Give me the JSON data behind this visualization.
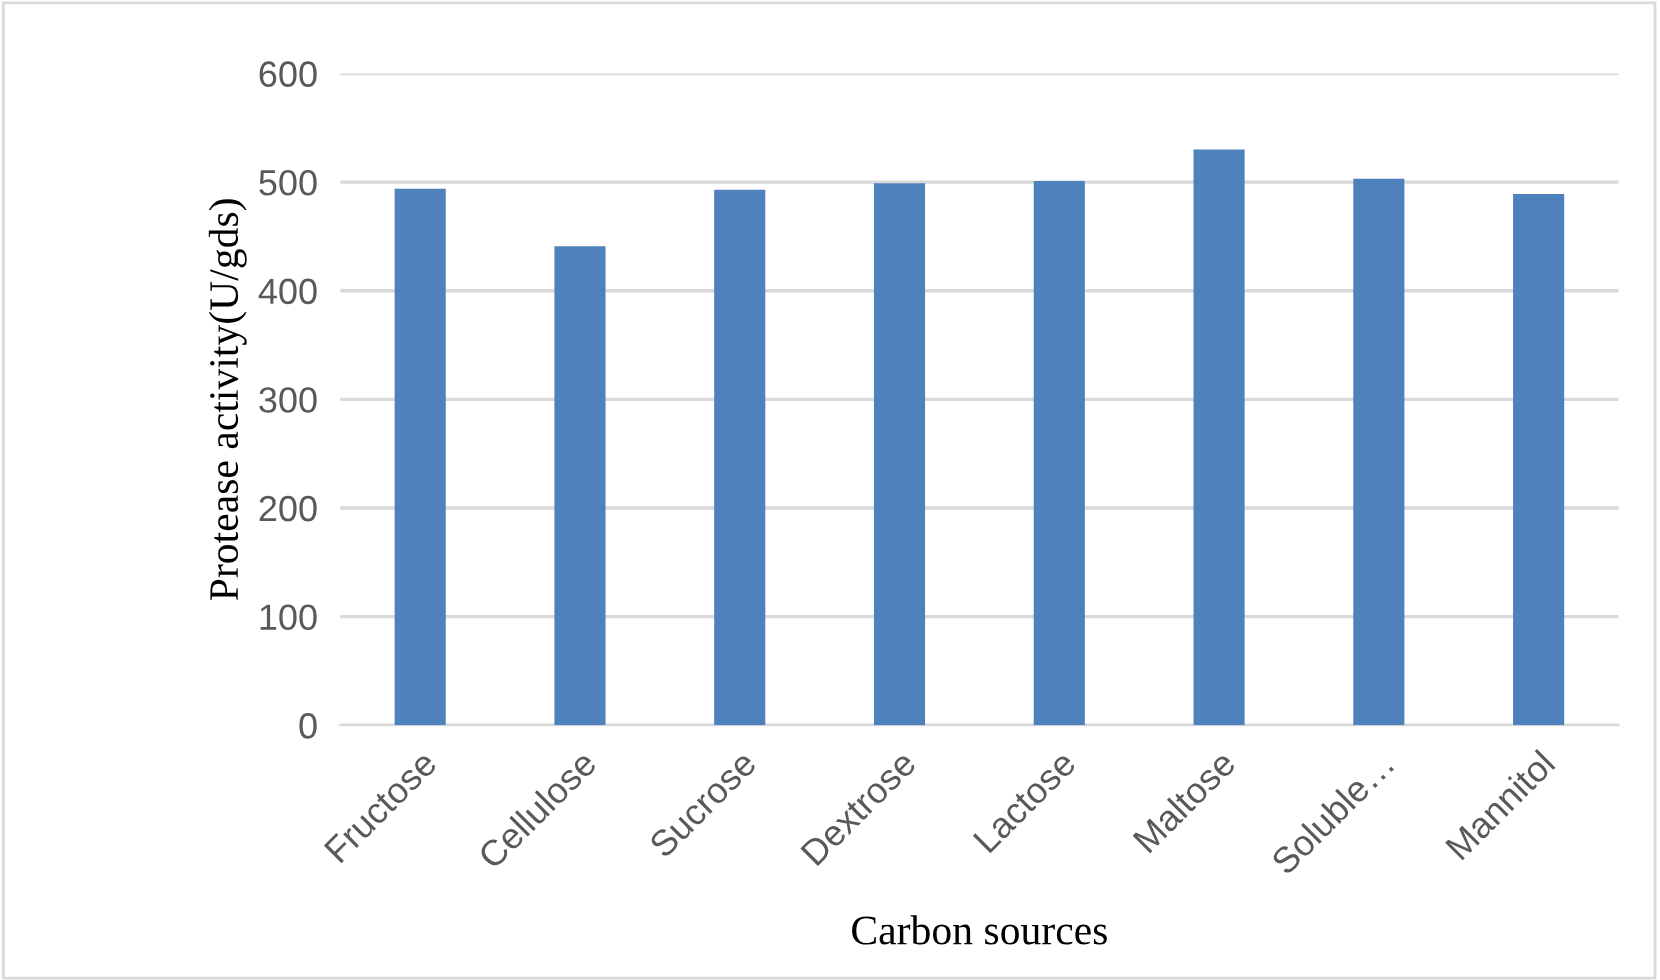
{
  "chart_data": {
    "type": "bar",
    "categories": [
      "Fructose",
      "Cellulose",
      "Sucrose",
      "Dextrose",
      "Lactose",
      "Maltose",
      "Soluble…",
      "Mannitol"
    ],
    "values": [
      494,
      441,
      493,
      499,
      501,
      530,
      503,
      489
    ],
    "color": "#4f81bd",
    "xlabel": "Carbon sources",
    "ylabel": "Protease activity(U/gds)",
    "ylim": [
      0,
      600
    ],
    "yticks": [
      0,
      100,
      200,
      300,
      400,
      500,
      600
    ],
    "grid": "y"
  }
}
